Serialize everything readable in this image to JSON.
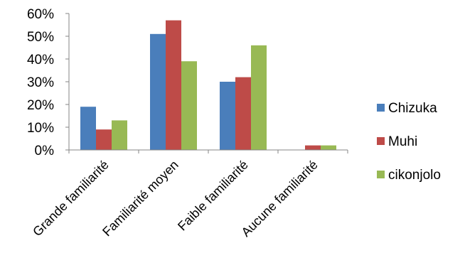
{
  "chart_data": {
    "type": "bar",
    "categories": [
      "Grande familiarité",
      "Familiarité moyen",
      "Faible familiarité",
      "Aucune familiarité"
    ],
    "series": [
      {
        "name": "Chizuka",
        "color": "#4a7ebb",
        "values": [
          19,
          51,
          30,
          0
        ]
      },
      {
        "name": "Muhi",
        "color": "#be4b48",
        "values": [
          9,
          57,
          32,
          2
        ]
      },
      {
        "name": "cikonjolo",
        "color": "#98b954",
        "values": [
          13,
          39,
          46,
          2
        ]
      }
    ],
    "ylim": [
      0,
      60
    ],
    "yticks": [
      {
        "value": 0,
        "label": "0%"
      },
      {
        "value": 10,
        "label": "10%"
      },
      {
        "value": 20,
        "label": "20%"
      },
      {
        "value": 30,
        "label": "30%"
      },
      {
        "value": 40,
        "label": "40%"
      },
      {
        "value": 50,
        "label": "50%"
      },
      {
        "value": 60,
        "label": "60%"
      }
    ],
    "grid": false,
    "legend_position": "right",
    "axis_color": "#868686"
  }
}
